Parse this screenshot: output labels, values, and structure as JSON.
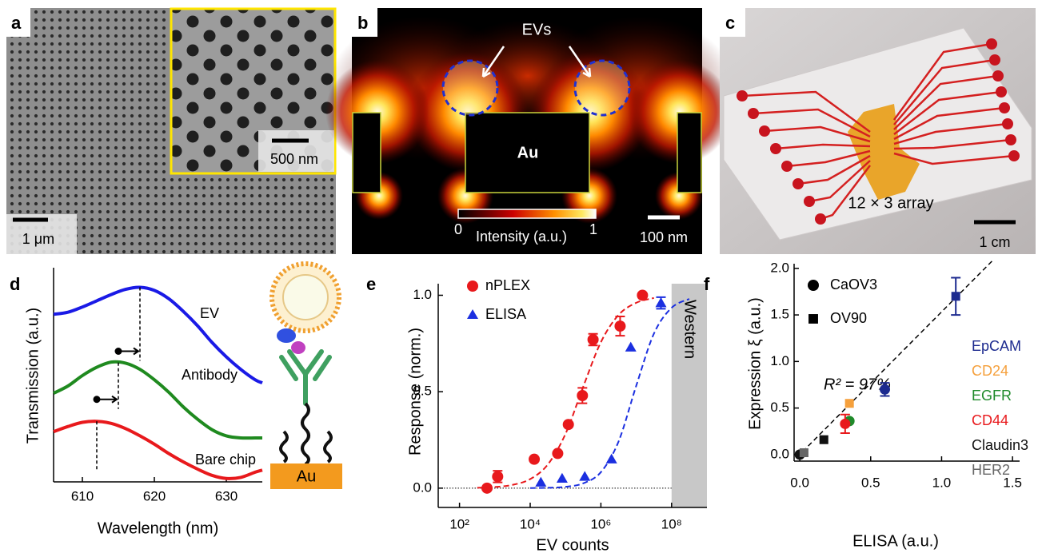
{
  "image_panels": {
    "a": {
      "label": "a",
      "inset_scale": "500 nm",
      "scale": "1 μm"
    },
    "b": {
      "label": "b",
      "annotation": "EVs",
      "material": "Au",
      "colorbar_min": 0,
      "colorbar_title": "Intensity (a.u.)",
      "colorbar_max": 1,
      "scale": "100 nm"
    },
    "c": {
      "label": "c",
      "annotation": "12 × 3 array",
      "scale": "1 cm"
    }
  },
  "chart_data": [
    {
      "type": "line",
      "label": "d",
      "x_label": "Wavelength (nm)",
      "y_label": "Transmission (a.u.)",
      "x": [
        606,
        608,
        610,
        612,
        614,
        616,
        618,
        620,
        622,
        624,
        626,
        628,
        630,
        632,
        634,
        635
      ],
      "xlim": [
        606,
        635
      ],
      "xticks": [
        610,
        620,
        630
      ],
      "ylim": [
        0,
        10
      ],
      "series": [
        {
          "name": "EV",
          "color": "#1a1ae6",
          "peak": 618,
          "values": [
            7.95,
            8.05,
            8.3,
            8.6,
            8.9,
            9.15,
            9.25,
            9.1,
            8.7,
            8.1,
            7.4,
            6.6,
            5.9,
            5.3,
            4.8,
            4.65
          ]
        },
        {
          "name": "Antibody",
          "color": "#1f8a1f",
          "peak": 615,
          "values": [
            4.15,
            4.5,
            5.0,
            5.4,
            5.65,
            5.6,
            5.3,
            4.8,
            4.2,
            3.5,
            2.9,
            2.4,
            2.1,
            2.0,
            2.0,
            2.0
          ]
        },
        {
          "name": "Bare chip",
          "color": "#e8191c",
          "peak": 612,
          "values": [
            2.3,
            2.55,
            2.75,
            2.8,
            2.7,
            2.45,
            2.1,
            1.7,
            1.25,
            0.85,
            0.5,
            0.2,
            0.05,
            0.1,
            0.35,
            0.45
          ]
        }
      ],
      "schematic_label": "Au"
    },
    {
      "type": "scatter",
      "label": "e",
      "x_label": "EV counts",
      "y_label": "Response (norm.)",
      "log_x": true,
      "xlim": [
        25,
        1000000000
      ],
      "xticks": [
        {
          "value": 100,
          "label": "10²"
        },
        {
          "value": 10000,
          "label": "10⁴"
        },
        {
          "value": 1000000,
          "label": "10⁶"
        },
        {
          "value": 100000000,
          "label": "10⁸"
        }
      ],
      "ylim": [
        -0.1,
        1.06
      ],
      "yticks": [
        {
          "value": 0,
          "label": "0.0"
        },
        {
          "value": 0.5,
          "label": "0.5"
        },
        {
          "value": 1,
          "label": "1.0"
        }
      ],
      "series": [
        {
          "name": "nPLEX",
          "color": "#e8191c",
          "marker": "circle",
          "x": [
            600,
            1200,
            13000,
            60000,
            120000,
            300000,
            600000,
            3500000,
            15000000
          ],
          "values": [
            0.0,
            0.06,
            0.15,
            0.18,
            0.33,
            0.48,
            0.77,
            0.84,
            1.0
          ],
          "errors": [
            null,
            0.03,
            null,
            null,
            null,
            0.04,
            0.03,
            0.05,
            null
          ],
          "fit": {
            "x": [
              316,
              1000,
              3162,
              10000,
              31623,
              100000,
              316228,
              1000000,
              3162278,
              10000000,
              31622777
            ],
            "values": [
              0.002,
              0.006,
              0.017,
              0.047,
              0.123,
              0.282,
              0.526,
              0.757,
              0.898,
              0.961,
              0.986
            ]
          }
        },
        {
          "name": "ELISA",
          "color": "#1b2fe0",
          "marker": "triangle",
          "x": [
            20000,
            80000,
            350000,
            2000000,
            7000000,
            50000000
          ],
          "values": [
            0.03,
            0.05,
            0.06,
            0.15,
            0.73,
            0.96
          ],
          "errors": [
            null,
            null,
            null,
            null,
            null,
            0.03
          ],
          "fit": {
            "x": [
              10000,
              31623,
              100000,
              316228,
              1000000,
              3162278,
              10000000,
              31622777,
              100000000,
              316227766
            ],
            "values": [
              0.0006,
              0.002,
              0.007,
              0.025,
              0.083,
              0.242,
              0.531,
              0.801,
              0.935,
              0.981
            ]
          }
        }
      ],
      "shaded_region": {
        "from": 100000000,
        "label": "Western"
      }
    },
    {
      "type": "scatter",
      "label": "f",
      "x_label": "ELISA (a.u.)",
      "y_label": "Expression ξ (a.u.)",
      "xlim": [
        -0.04,
        1.55
      ],
      "xticks": [
        {
          "value": 0,
          "label": "0.0"
        },
        {
          "value": 0.5,
          "label": "0.5"
        },
        {
          "value": 1,
          "label": "1.0"
        },
        1.5
      ],
      "ylim": [
        -0.07,
        2.05
      ],
      "yticks": [
        {
          "value": 0,
          "label": "0.0"
        },
        {
          "value": 0.5,
          "label": "0.5"
        },
        {
          "value": 1,
          "label": "1.0"
        },
        1.5,
        {
          "value": 2,
          "label": "2.0"
        }
      ],
      "marker_legend": [
        {
          "name": "CaOV3",
          "marker": "circle"
        },
        {
          "name": "OV90",
          "marker": "square"
        }
      ],
      "series": [
        {
          "name": "EpCAM",
          "color": "#1c2a8f",
          "x": [
            0.6,
            1.1
          ],
          "values": [
            0.7,
            1.7
          ],
          "markers": [
            "circle",
            "square"
          ],
          "errors": [
            0.07,
            0.2
          ]
        },
        {
          "name": "CD24",
          "color": "#f5a03c",
          "x": [
            0.35
          ],
          "values": [
            0.55
          ],
          "markers": [
            "square"
          ],
          "errors": [
            null
          ]
        },
        {
          "name": "EGFR",
          "color": "#1f8a2a",
          "x": [
            0.35
          ],
          "values": [
            0.36
          ],
          "markers": [
            "circle"
          ],
          "errors": [
            null
          ]
        },
        {
          "name": "CD44",
          "color": "#e8191c",
          "x": [
            0.32
          ],
          "values": [
            0.33
          ],
          "markers": [
            "circle"
          ],
          "errors": [
            0.1
          ]
        },
        {
          "name": "Claudin3",
          "color": "#111111",
          "x": [
            0.17,
            0.0
          ],
          "values": [
            0.16,
            0.0
          ],
          "markers": [
            "square",
            "circle"
          ],
          "errors": [
            null,
            null
          ]
        },
        {
          "name": "HER2",
          "color": "#666666",
          "x": [
            0.03
          ],
          "values": [
            0.02
          ],
          "markers": [
            "square"
          ],
          "errors": [
            null
          ]
        }
      ],
      "fit_line": {
        "x": [
          -0.02,
          1.37
        ],
        "values": [
          -0.03,
          2.1
        ]
      },
      "annotation": "R² = 97%"
    }
  ]
}
